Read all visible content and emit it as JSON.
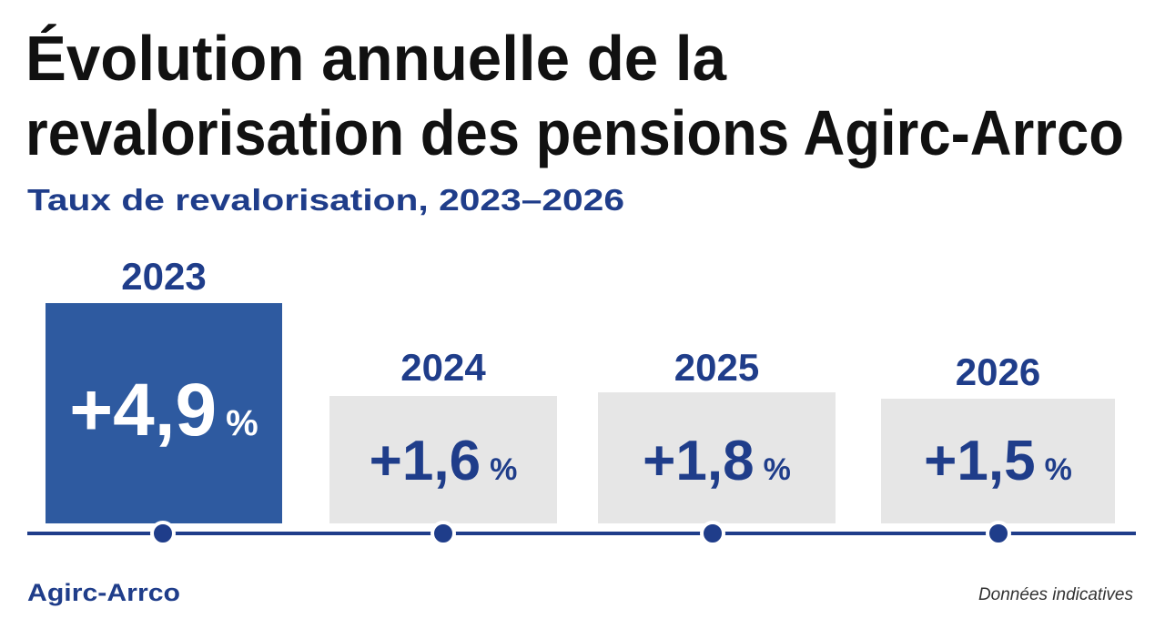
{
  "header": {
    "title_lines": [
      "Évolution annuelle de la",
      "revalorisation des pensions Agirc-Arrco"
    ],
    "subtitle": "Taux de revalorisation, 2023–2026"
  },
  "cards": [
    {
      "year": "2023",
      "rate": "+4,9",
      "unit": "%"
    },
    {
      "year": "2024",
      "rate": "+1,6",
      "unit": "%"
    },
    {
      "year": "2025",
      "rate": "+1,8",
      "unit": "%"
    },
    {
      "year": "2026",
      "rate": "+1,5",
      "unit": "%"
    }
  ],
  "footer": {
    "source": "Agirc-Arrco",
    "note": "Données indicatives"
  }
}
